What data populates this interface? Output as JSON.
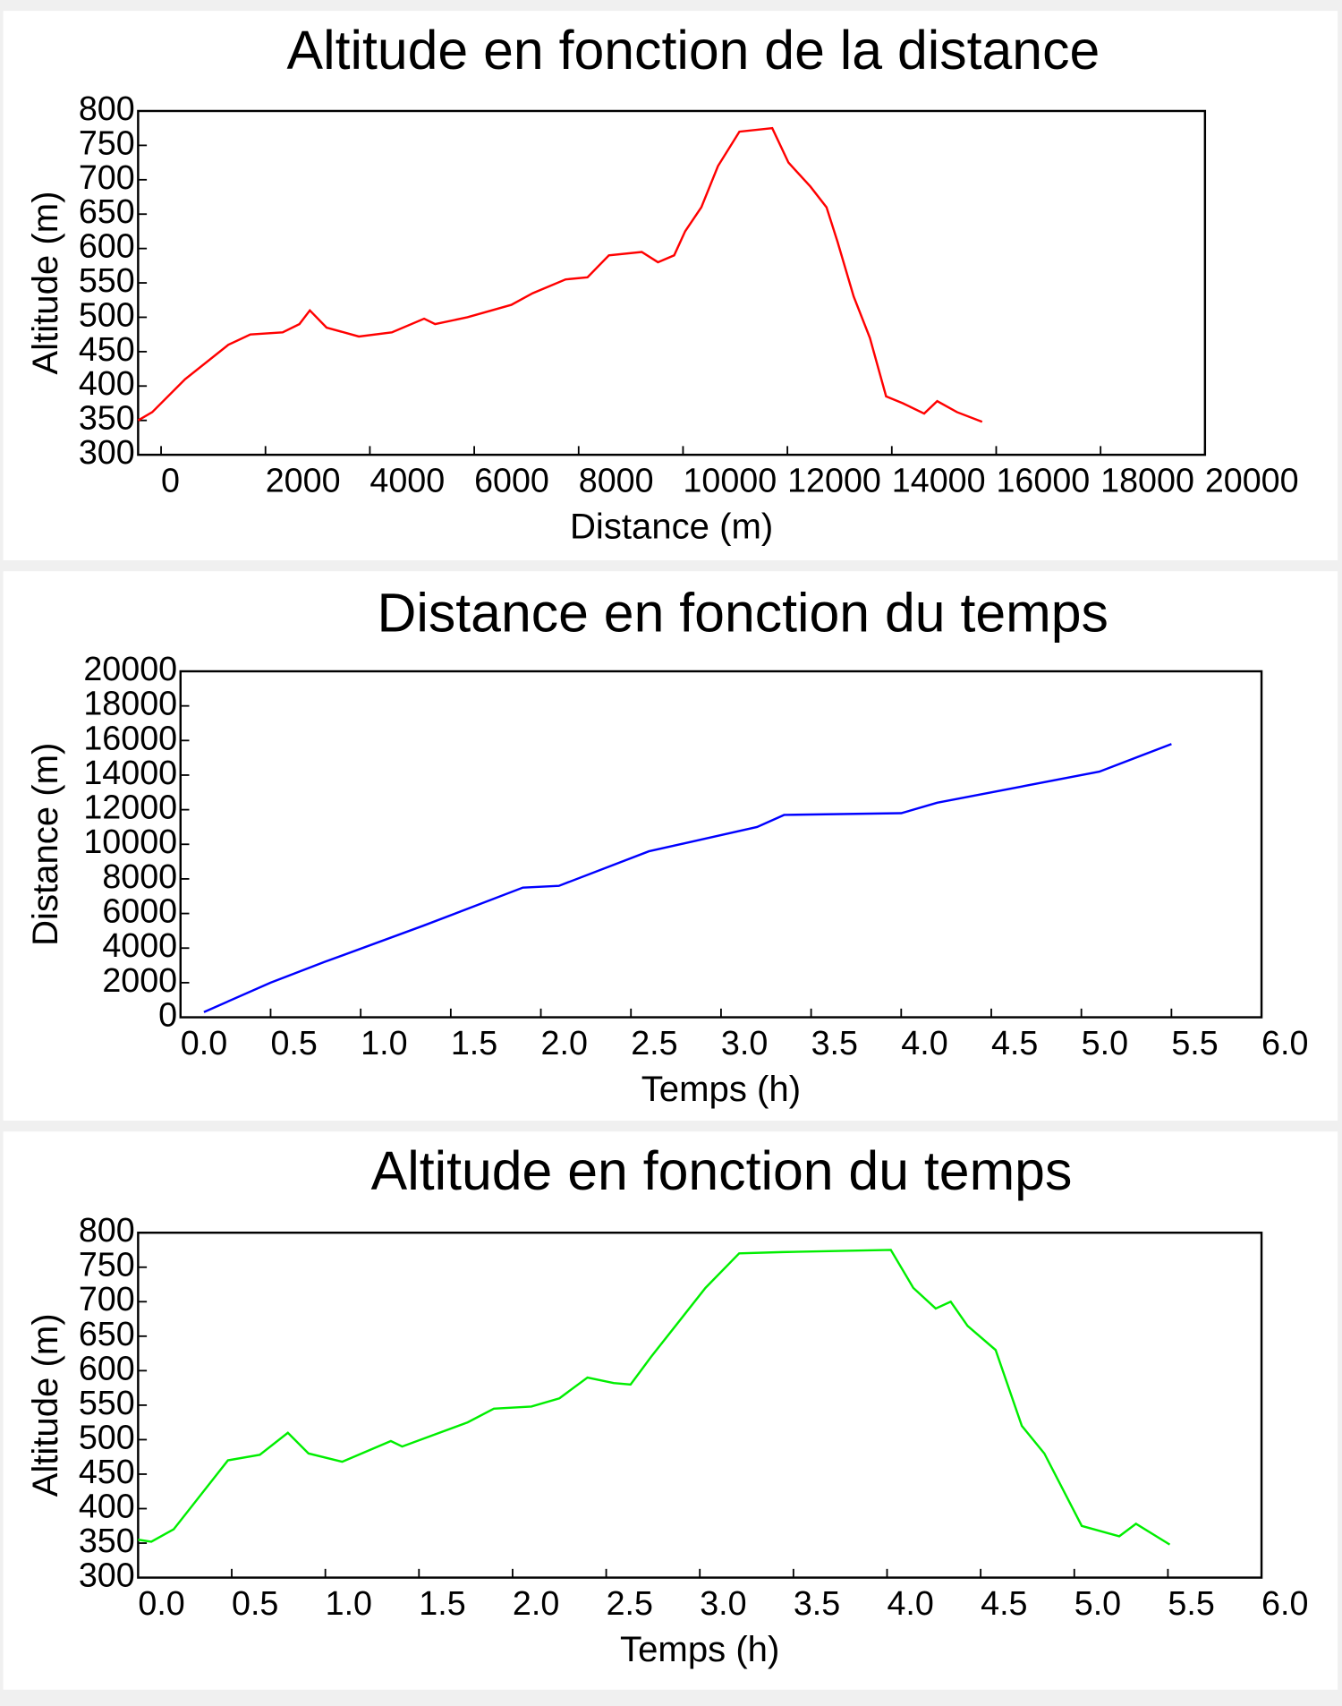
{
  "chart_data": [
    {
      "type": "line",
      "title": "Altitude en fonction de la distance",
      "xlabel": "Distance (m)",
      "ylabel": "Altitude (m)",
      "color": "#ff0000",
      "x": [
        -440,
        -170,
        460,
        1290,
        1710,
        2330,
        2650,
        2850,
        3170,
        3790,
        4420,
        5040,
        5250,
        5870,
        6710,
        7120,
        7750,
        8170,
        8580,
        9210,
        9520,
        9830,
        10040,
        10350,
        10670,
        11080,
        11710,
        12020,
        12440,
        12750,
        12960,
        13270,
        13580,
        13890,
        14210,
        14620,
        14870,
        15250,
        15730
      ],
      "values": [
        350,
        362,
        410,
        460,
        475,
        478,
        490,
        510,
        485,
        472,
        478,
        498,
        490,
        500,
        518,
        535,
        555,
        558,
        590,
        595,
        580,
        590,
        625,
        660,
        720,
        770,
        775,
        725,
        690,
        660,
        610,
        530,
        470,
        385,
        375,
        360,
        378,
        362,
        348
      ],
      "xlim": [
        -440,
        20000
      ],
      "xticks": [
        0,
        2000,
        4000,
        6000,
        8000,
        10000,
        12000,
        14000,
        16000,
        18000,
        20000
      ],
      "ylim": [
        300,
        800
      ],
      "yticks": [
        300,
        350,
        400,
        450,
        500,
        550,
        600,
        650,
        700,
        750,
        800
      ]
    },
    {
      "type": "line",
      "title": "Distance en fonction du temps",
      "xlabel": "Temps (h)",
      "ylabel": "Distance (m)",
      "color": "#0000ff",
      "x": [
        0.13,
        0.5,
        0.8,
        1.35,
        1.9,
        2.1,
        2.6,
        3.2,
        3.35,
        4.0,
        4.2,
        5.1,
        5.5
      ],
      "values": [
        300,
        2000,
        3200,
        5300,
        7500,
        7600,
        9600,
        11000,
        11700,
        11800,
        12400,
        14200,
        15800
      ],
      "xlim": [
        0,
        6
      ],
      "xticks": [
        {
          "value": 0,
          "label": "0.0"
        },
        0.5,
        {
          "value": 1,
          "label": "1.0"
        },
        1.5,
        {
          "value": 2,
          "label": "2.0"
        },
        2.5,
        {
          "value": 3,
          "label": "3.0"
        },
        3.5,
        {
          "value": 4,
          "label": "4.0"
        },
        4.5,
        {
          "value": 5,
          "label": "5.0"
        },
        5.5,
        {
          "value": 6,
          "label": "6.0"
        }
      ],
      "ylim": [
        0,
        20000
      ],
      "yticks": [
        0,
        2000,
        4000,
        6000,
        8000,
        10000,
        12000,
        14000,
        16000,
        18000,
        20000
      ]
    },
    {
      "type": "line",
      "title": "Altitude en fonction du temps",
      "xlabel": "Temps (h)",
      "ylabel": "Altitude (m)",
      "color": "#00ee00",
      "x": [
        0,
        0.07,
        0.19,
        0.48,
        0.65,
        0.8,
        0.91,
        1.09,
        1.35,
        1.41,
        1.76,
        1.9,
        2.1,
        2.25,
        2.4,
        2.54,
        2.63,
        2.74,
        3.03,
        3.21,
        3.44,
        4.02,
        4.14,
        4.26,
        4.34,
        4.43,
        4.58,
        4.72,
        4.84,
        5.04,
        5.24,
        5.33,
        5.51
      ],
      "values": [
        355,
        352,
        370,
        470,
        478,
        510,
        480,
        468,
        498,
        490,
        525,
        545,
        548,
        560,
        590,
        582,
        580,
        620,
        720,
        770,
        772,
        775,
        720,
        690,
        700,
        665,
        630,
        520,
        480,
        375,
        360,
        378,
        348
      ],
      "xlim": [
        0,
        6
      ],
      "xticks": [
        {
          "value": 0,
          "label": "0.0"
        },
        0.5,
        {
          "value": 1,
          "label": "1.0"
        },
        1.5,
        {
          "value": 2,
          "label": "2.0"
        },
        2.5,
        {
          "value": 3,
          "label": "3.0"
        },
        3.5,
        {
          "value": 4,
          "label": "4.0"
        },
        4.5,
        {
          "value": 5,
          "label": "5.0"
        },
        5.5,
        {
          "value": 6,
          "label": "6.0"
        }
      ],
      "ylim": [
        300,
        800
      ],
      "yticks": [
        300,
        350,
        400,
        450,
        500,
        550,
        600,
        650,
        700,
        750,
        800
      ]
    }
  ]
}
